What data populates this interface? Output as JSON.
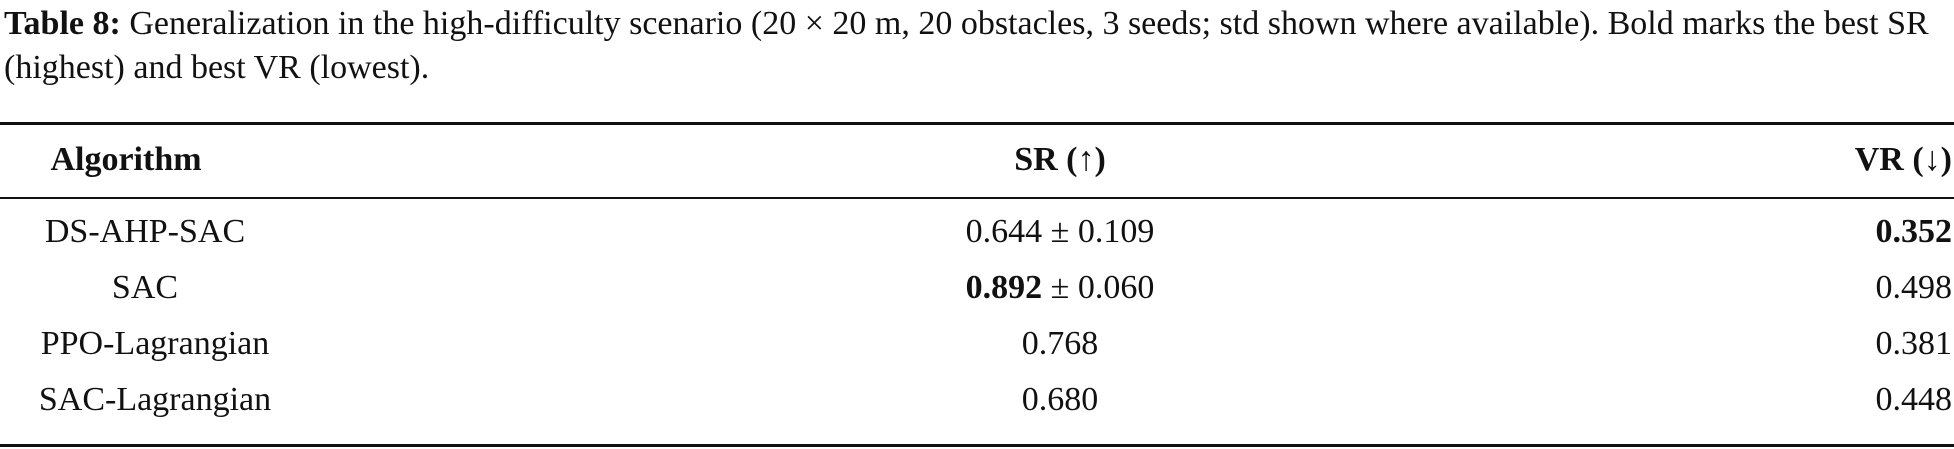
{
  "caption": {
    "label": "Table 8:",
    "text": "Generalization in the high-difficulty scenario (20 × 20 m, 20 obstacles, 3 seeds; std shown where available). Bold marks the best SR (highest) and best VR (lowest)."
  },
  "table": {
    "headers": {
      "algorithm": "Algorithm",
      "sr": "SR (↑)",
      "vr": "VR (↓)"
    },
    "rows": [
      {
        "algorithm": "DS-AHP-SAC",
        "sr_main": "0.644",
        "sr_std": " ± 0.109",
        "sr_bold": false,
        "vr": "0.352",
        "vr_bold": true
      },
      {
        "algorithm": "SAC",
        "sr_main": "0.892",
        "sr_std": " ± 0.060",
        "sr_bold": true,
        "vr": "0.498",
        "vr_bold": false
      },
      {
        "algorithm": "PPO-Lagrangian",
        "sr_main": "0.768",
        "sr_std": "",
        "sr_bold": false,
        "vr": "0.381",
        "vr_bold": false
      },
      {
        "algorithm": "SAC-Lagrangian",
        "sr_main": "0.680",
        "sr_std": "",
        "sr_bold": false,
        "vr": "0.448",
        "vr_bold": false
      }
    ]
  }
}
